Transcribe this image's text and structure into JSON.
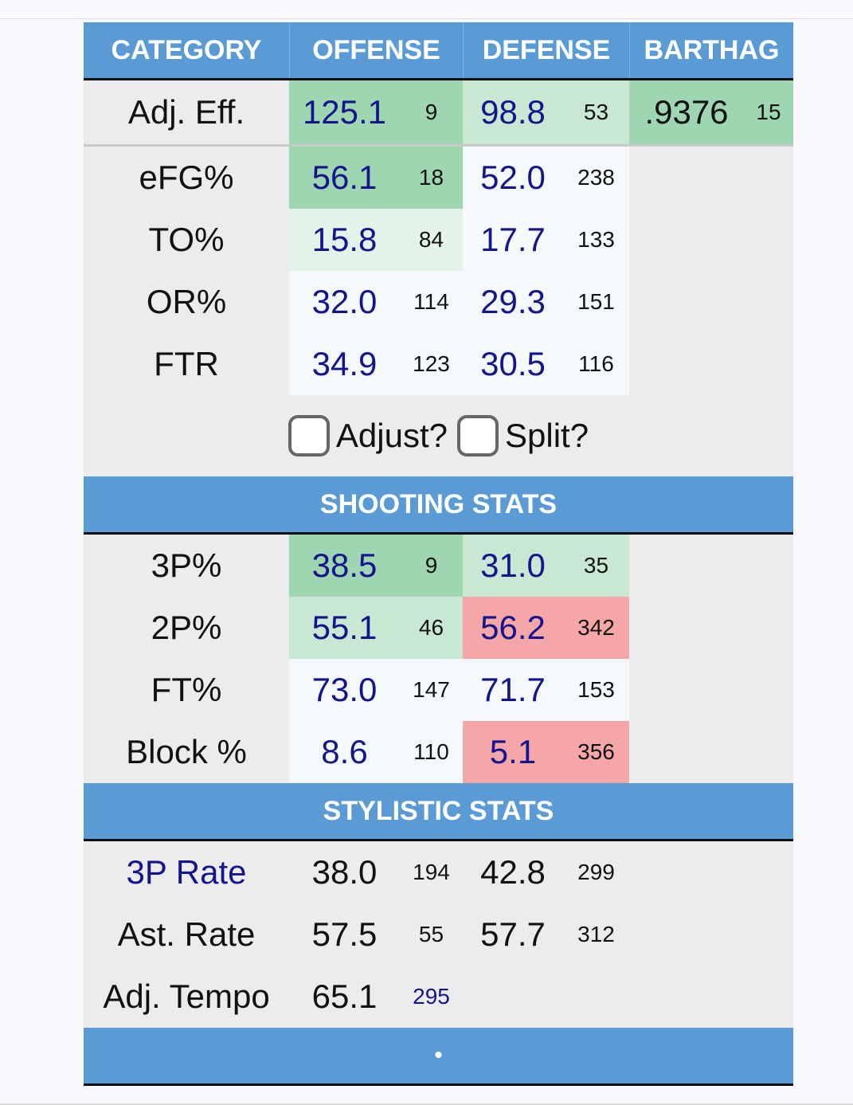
{
  "header": {
    "category": "CATEGORY",
    "offense": "OFFENSE",
    "defense": "DEFENSE",
    "barthag": "BARTHAG"
  },
  "adj_eff": {
    "label": "Adj. Eff.",
    "off": "125.1",
    "off_rank": "9",
    "def": "98.8",
    "def_rank": "53",
    "barthag": ".9376",
    "barthag_rank": "15"
  },
  "four_factors": [
    {
      "label": "eFG%",
      "off": "56.1",
      "off_rank": "18",
      "def": "52.0",
      "def_rank": "238"
    },
    {
      "label": "TO%",
      "off": "15.8",
      "off_rank": "84",
      "def": "17.7",
      "def_rank": "133"
    },
    {
      "label": "OR%",
      "off": "32.0",
      "off_rank": "114",
      "def": "29.3",
      "def_rank": "151"
    },
    {
      "label": "FTR",
      "off": "34.9",
      "off_rank": "123",
      "def": "30.5",
      "def_rank": "116"
    }
  ],
  "options": {
    "adjust_label": "Adjust?",
    "split_label": "Split?"
  },
  "shooting": {
    "title": "SHOOTING STATS",
    "rows": [
      {
        "label": "3P%",
        "off": "38.5",
        "off_rank": "9",
        "def": "31.0",
        "def_rank": "35"
      },
      {
        "label": "2P%",
        "off": "55.1",
        "off_rank": "46",
        "def": "56.2",
        "def_rank": "342"
      },
      {
        "label": "FT%",
        "off": "73.0",
        "off_rank": "147",
        "def": "71.7",
        "def_rank": "153"
      },
      {
        "label": "Block %",
        "off": "8.6",
        "off_rank": "110",
        "def": "5.1",
        "def_rank": "356"
      }
    ]
  },
  "stylistic": {
    "title": "STYLISTIC STATS",
    "rows": [
      {
        "label": "3P Rate",
        "off": "38.0",
        "off_rank": "194",
        "def": "42.8",
        "def_rank": "299"
      },
      {
        "label": "Ast. Rate",
        "off": "57.5",
        "off_rank": "55",
        "def": "57.7",
        "def_rank": "312"
      },
      {
        "label": "Adj. Tempo",
        "off": "65.1",
        "off_rank": "295"
      }
    ]
  },
  "footer": {
    "text": "•"
  },
  "colors": {
    "header_blue": "#5b9bd5",
    "good_strong": "#9fd6b2",
    "good_mid": "#c8e8d3",
    "good_light": "#e4f3e9",
    "bad": "#f4a6a8",
    "value_blue": "#14148c"
  }
}
